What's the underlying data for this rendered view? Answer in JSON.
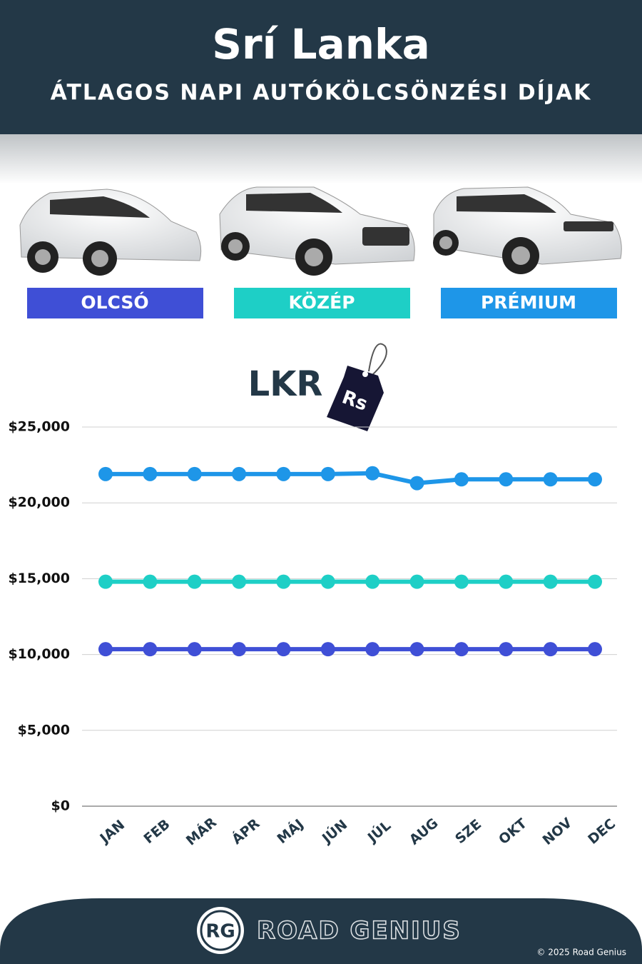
{
  "chart_data": {
    "type": "line",
    "title": "Srí Lanka",
    "subtitle": "ÁTLAGOS NAPI AUTÓKÖLCSÖNZÉSI DÍJAK",
    "annotations": [
      "LKR",
      "Rs"
    ],
    "categories": [
      "JAN",
      "FEB",
      "MÁR",
      "ÁPR",
      "MÁJ",
      "JÚN",
      "JÚL",
      "AUG",
      "SZE",
      "OKT",
      "NOV",
      "DEC"
    ],
    "series": [
      {
        "name": "OLCSÓ",
        "color": "#3f4fd6",
        "values": [
          10350,
          10350,
          10350,
          10350,
          10350,
          10350,
          10350,
          10350,
          10350,
          10350,
          10350,
          10350
        ]
      },
      {
        "name": "KÖZÉP",
        "color": "#1ecfc6",
        "values": [
          14800,
          14800,
          14800,
          14800,
          14800,
          14800,
          14800,
          14800,
          14800,
          14800,
          14800,
          14800
        ]
      },
      {
        "name": "PRÉMIUM",
        "color": "#1e96e8",
        "values": [
          21900,
          21900,
          21900,
          21900,
          21900,
          21900,
          21950,
          21300,
          21550,
          21550,
          21550,
          21550
        ]
      }
    ],
    "ylim": [
      0,
      25000
    ],
    "yticks": [
      {
        "value": 0,
        "label": "$0"
      },
      {
        "value": 5000,
        "label": "$5,000"
      },
      {
        "value": 10000,
        "label": "$10,000"
      },
      {
        "value": 15000,
        "label": "$15,000"
      },
      {
        "value": 20000,
        "label": "$20,000"
      },
      {
        "value": 25000,
        "label": "$25,000"
      }
    ],
    "grid": true
  },
  "footer": {
    "logo": "RG",
    "brand": "ROAD GENIUS",
    "copyright": "© 2025 Road Genius"
  }
}
